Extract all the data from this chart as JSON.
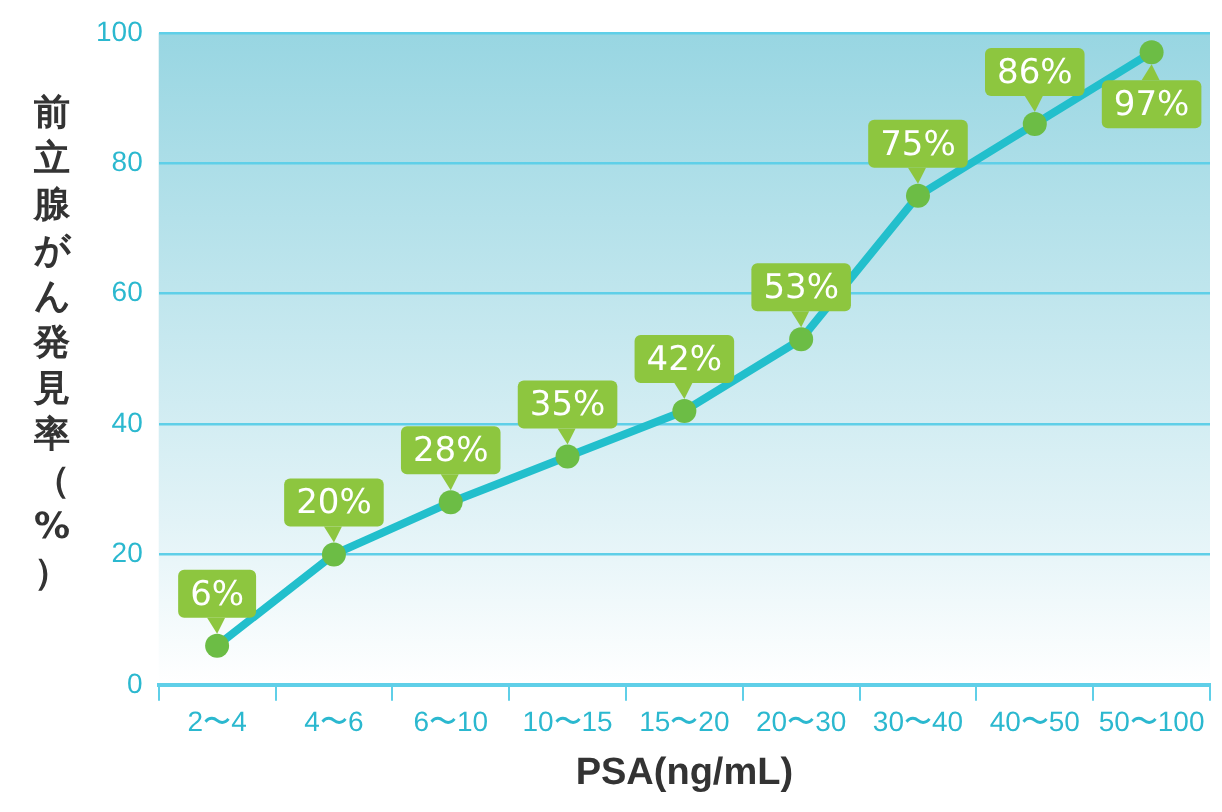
{
  "chart_data": {
    "type": "line",
    "xlabel": "PSA(ng/mL)",
    "ylabel": "前立腺がん発見率（%）",
    "categories": [
      "2〜4",
      "4〜6",
      "6〜10",
      "10〜15",
      "15〜20",
      "20〜30",
      "30〜40",
      "40〜50",
      "50〜100"
    ],
    "series": [
      {
        "color": "#22bfcc",
        "values": [
          6,
          20,
          28,
          35,
          42,
          53,
          75,
          86,
          97
        ],
        "value_labels": [
          "6%",
          "20%",
          "28%",
          "35%",
          "42%",
          "53%",
          "75%",
          "86%",
          "97%"
        ]
      }
    ],
    "ylim": [
      0,
      100
    ],
    "yticks": [
      0,
      20,
      40,
      60,
      80,
      100
    ],
    "grid": "y",
    "legend": false,
    "marker": "circle",
    "line_style": "solid"
  }
}
